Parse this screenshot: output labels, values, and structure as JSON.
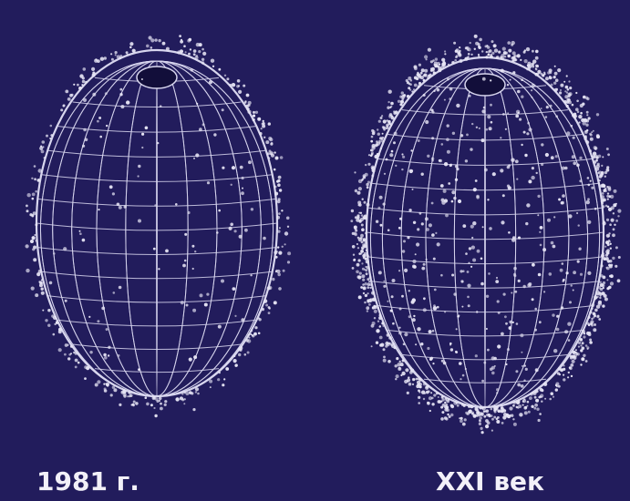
{
  "captions": {
    "left": "1981 г.",
    "right": "XXI век"
  }
}
